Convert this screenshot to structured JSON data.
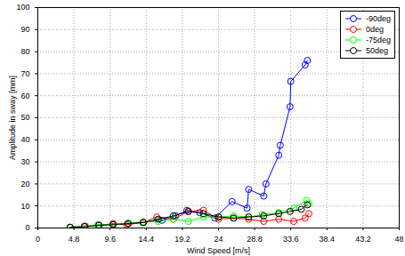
{
  "chart_data": {
    "type": "line",
    "xlabel": "Wind Speed [m/s]",
    "ylabel": "Amplitude in sway [mm]",
    "xlim": [
      0,
      48
    ],
    "xticks": [
      0,
      4.8,
      9.6,
      14.4,
      19.2,
      24,
      28.8,
      33.6,
      38.4,
      43.2,
      48
    ],
    "ylim": [
      0,
      100
    ],
    "yticks": [
      0,
      10,
      20,
      30,
      40,
      50,
      60,
      70,
      80,
      90,
      100
    ],
    "grid": true,
    "legend": "top-right",
    "marker": "circle",
    "line_style": "solid",
    "series": [
      {
        "name": "-90deg",
        "color": "#0000ff",
        "x": [
          4.3,
          6.2,
          8.1,
          10,
          12,
          14,
          16.5,
          18.3,
          19.8,
          21.5,
          23.5,
          25.8,
          27.8,
          28,
          30,
          30.3,
          32,
          32.2,
          33.5,
          33.6,
          35.5,
          35.8
        ],
        "values": [
          0.3,
          0.8,
          1.3,
          1.6,
          2,
          2.5,
          3.5,
          5.5,
          8,
          7,
          4.5,
          12,
          9,
          17.5,
          14.5,
          20,
          33,
          37.5,
          55,
          66.5,
          74,
          76
        ]
      },
      {
        "name": "0deg",
        "color": "#ff0000",
        "x": [
          4.3,
          6.3,
          8.1,
          10,
          11.8,
          14,
          15.8,
          18,
          20,
          22,
          24,
          26,
          28,
          30,
          32,
          34,
          35.5,
          36
        ],
        "values": [
          0.3,
          0.8,
          1.2,
          2,
          1.5,
          2.5,
          5,
          4,
          7.5,
          8,
          4,
          4.5,
          4,
          3,
          4,
          3,
          4.5,
          6.5
        ]
      },
      {
        "name": "-75deg",
        "color": "#00ff00",
        "x": [
          4.3,
          8,
          10,
          12,
          14,
          16,
          18,
          20,
          22,
          24,
          26,
          28,
          29.8,
          32,
          34,
          35.7,
          36
        ],
        "values": [
          0.3,
          1.5,
          1.5,
          2.2,
          2.8,
          3,
          4,
          3,
          5,
          5,
          5.5,
          5,
          6,
          7,
          9,
          12.5,
          11
        ]
      },
      {
        "name": "50deg",
        "color": "#000000",
        "x": [
          4.3,
          6.2,
          8.1,
          10,
          12,
          14,
          16,
          18,
          20,
          22,
          24,
          26,
          28,
          30,
          32,
          33.5,
          35,
          35.8
        ],
        "values": [
          0.3,
          0.6,
          1.2,
          1.5,
          2,
          2.5,
          4,
          5.5,
          7.5,
          6.5,
          5,
          4.5,
          5,
          5.5,
          6.5,
          7.5,
          8.5,
          10.5
        ]
      }
    ]
  }
}
